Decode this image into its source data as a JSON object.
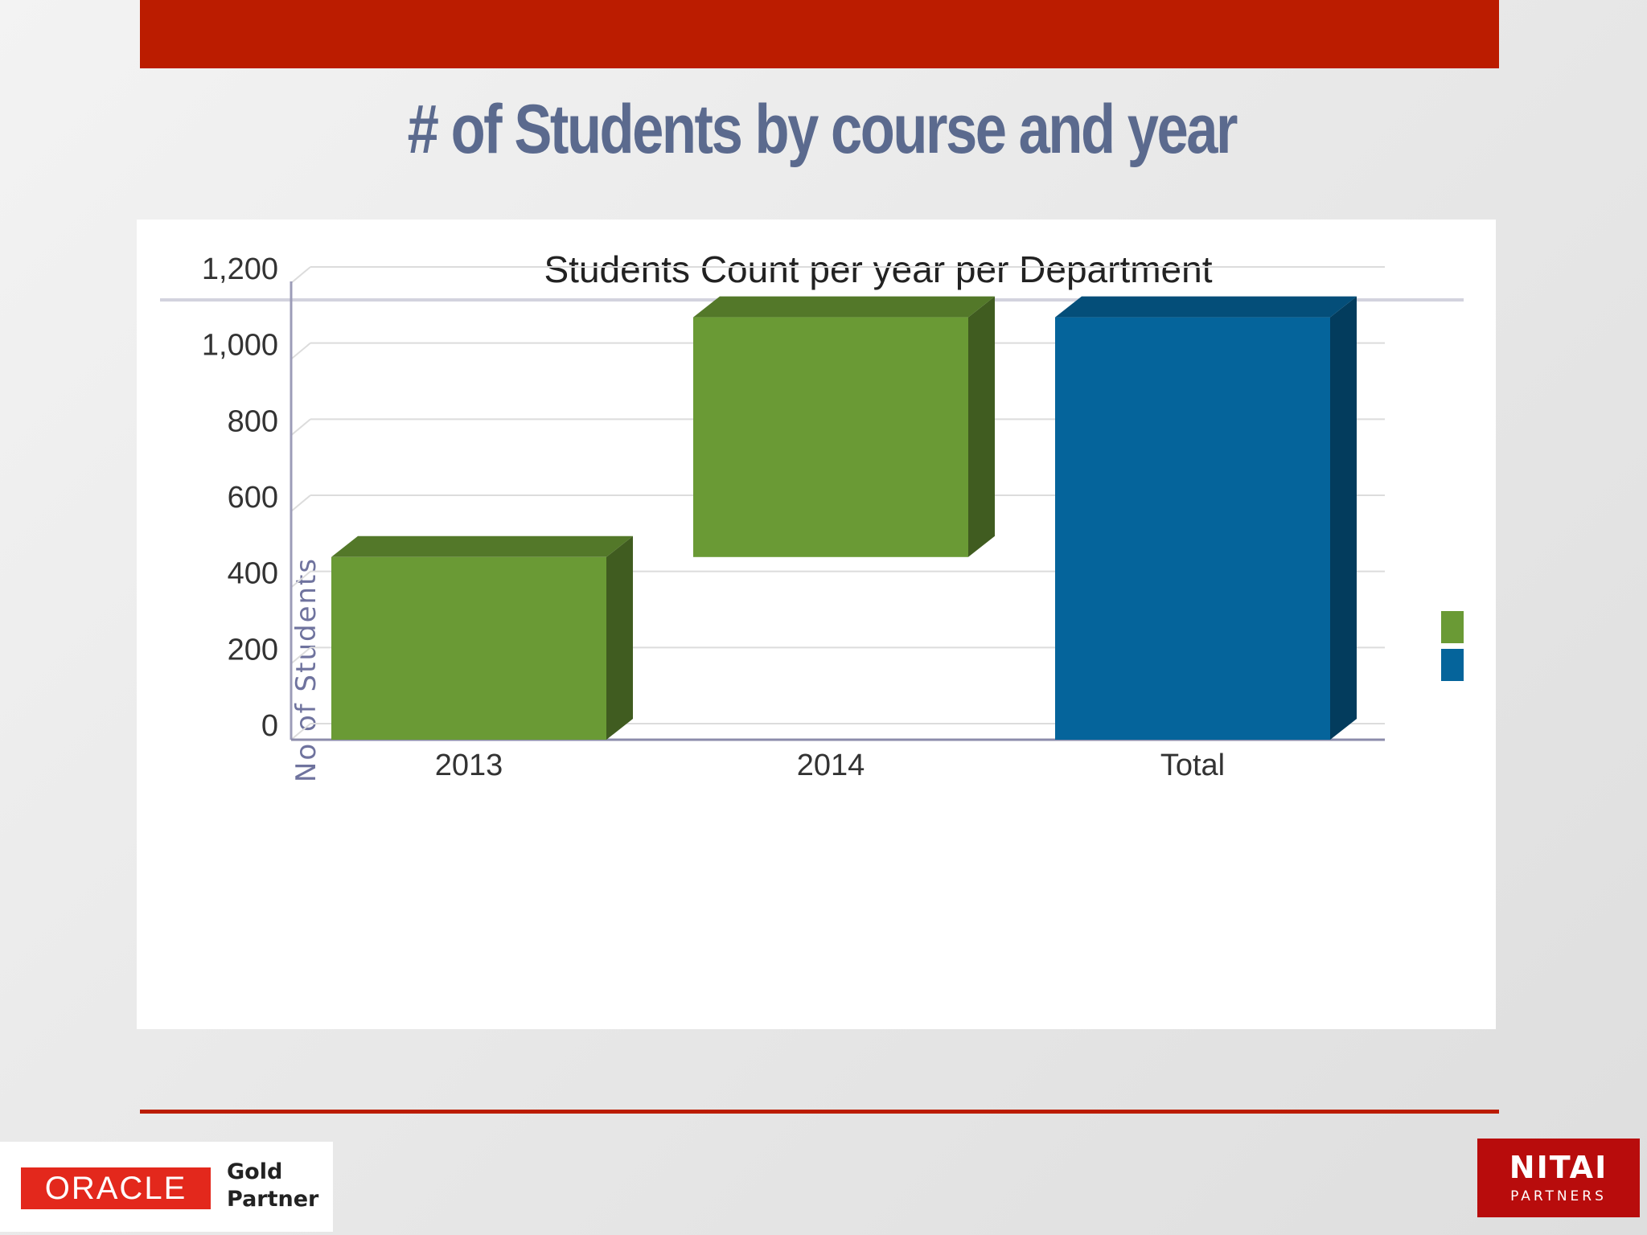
{
  "slide": {
    "title": "# of Students by course and year",
    "accent_color": "#bb1c00"
  },
  "chart_data": {
    "type": "bar",
    "title": "Students Count per year per Department",
    "xlabel": "",
    "ylabel": "No of Students",
    "categories": [
      "2013",
      "2014",
      "Total"
    ],
    "ylim": [
      0,
      1200
    ],
    "yticks": [
      0,
      200,
      400,
      600,
      800,
      1000,
      1200
    ],
    "ytick_labels": [
      "0",
      "200",
      "400",
      "600",
      "800",
      "1,000",
      "1,200"
    ],
    "grid": true,
    "legend_position": "right",
    "bars": [
      {
        "category": "2013",
        "start": 0,
        "end": 480,
        "color": "#6a9a35"
      },
      {
        "category": "2014",
        "start": 480,
        "end": 1110,
        "color": "#6a9a35"
      },
      {
        "category": "Total",
        "start": 0,
        "end": 1110,
        "color": "#05649b"
      }
    ],
    "legend": [
      {
        "color": "#6a9a35"
      },
      {
        "color": "#05649b"
      }
    ]
  },
  "logos": {
    "oracle": {
      "wordmark": "ORACLE",
      "line1": "Gold",
      "line2": "Partner"
    },
    "nitai": {
      "name": "NITAI",
      "sub": "PARTNERS"
    }
  }
}
